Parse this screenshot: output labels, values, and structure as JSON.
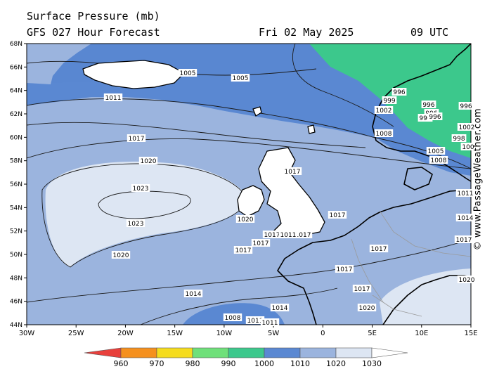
{
  "header": {
    "title": "Surface Pressure (mb)",
    "model": "GFS 027 Hour Forecast",
    "date": "Fri 02 May 2025",
    "time": "09 UTC"
  },
  "credit": "© www.PassageWeather.com",
  "axes": {
    "lat_labels": [
      "68N",
      "66N",
      "64N",
      "62N",
      "60N",
      "58N",
      "56N",
      "54N",
      "52N",
      "50N",
      "48N",
      "46N",
      "44N"
    ],
    "lon_labels": [
      "30W",
      "25W",
      "20W",
      "15W",
      "10W",
      "5W",
      "0",
      "5E",
      "10E",
      "15E"
    ]
  },
  "isobar_labels": [
    {
      "id": "l1005a",
      "text": "1005"
    },
    {
      "id": "l1005b",
      "text": "1005"
    },
    {
      "id": "l1011a",
      "text": "1011"
    },
    {
      "id": "l1017a",
      "text": "1017"
    },
    {
      "id": "l1020a",
      "text": "1020"
    },
    {
      "id": "l1023a",
      "text": "1023"
    },
    {
      "id": "l1023b",
      "text": "1023"
    },
    {
      "id": "l1020b",
      "text": "1020"
    },
    {
      "id": "l1020c",
      "text": "1020"
    },
    {
      "id": "l1017b",
      "text": "1017"
    },
    {
      "id": "l1017c",
      "text": "1017"
    },
    {
      "id": "l1017d",
      "text": "1017"
    },
    {
      "id": "l1017e",
      "text": "1017"
    },
    {
      "id": "l1017f",
      "text": "1017"
    },
    {
      "id": "l1017g",
      "text": "1017"
    },
    {
      "id": "l1017h",
      "text": "1017"
    },
    {
      "id": "l1017i",
      "text": "1017"
    },
    {
      "id": "l1017j",
      "text": "1017"
    },
    {
      "id": "l1017k",
      "text": "1017"
    },
    {
      "id": "l1011b",
      "text": "1011"
    },
    {
      "id": "l1014a",
      "text": "1014"
    },
    {
      "id": "l1014b",
      "text": "1014"
    },
    {
      "id": "l1011c",
      "text": "1011"
    },
    {
      "id": "l1011d",
      "text": "1011"
    },
    {
      "id": "l1008a",
      "text": "1008"
    },
    {
      "id": "l1020d",
      "text": "1020"
    },
    {
      "id": "l996a",
      "text": "996"
    },
    {
      "id": "l999a",
      "text": "999"
    },
    {
      "id": "l1002a",
      "text": "1002"
    },
    {
      "id": "l996b",
      "text": "996"
    },
    {
      "id": "l996c",
      "text": "996"
    },
    {
      "id": "l996d",
      "text": "996"
    },
    {
      "id": "l996e",
      "text": "996"
    },
    {
      "id": "l996f",
      "text": "996"
    },
    {
      "id": "l1008b",
      "text": "1008"
    },
    {
      "id": "l1005c",
      "text": "1005"
    },
    {
      "id": "l1008c",
      "text": "1008"
    },
    {
      "id": "l1011e",
      "text": "1011"
    },
    {
      "id": "l1014c",
      "text": "1014"
    },
    {
      "id": "l1017l",
      "text": "1017"
    },
    {
      "id": "l1020e",
      "text": "1020"
    },
    {
      "id": "l998a",
      "text": "998"
    },
    {
      "id": "l100a",
      "text": "100"
    },
    {
      "id": "l1002b",
      "text": "1002"
    }
  ],
  "colorbar": {
    "labels": [
      "960",
      "970",
      "980",
      "990",
      "1000",
      "1010",
      "1020",
      "1030"
    ],
    "colors": [
      "#e8403c",
      "#f5901e",
      "#f5dc1e",
      "#6fe07a",
      "#3cc88c",
      "#5a88d2",
      "#9bb4de",
      "#dde6f3"
    ]
  }
}
